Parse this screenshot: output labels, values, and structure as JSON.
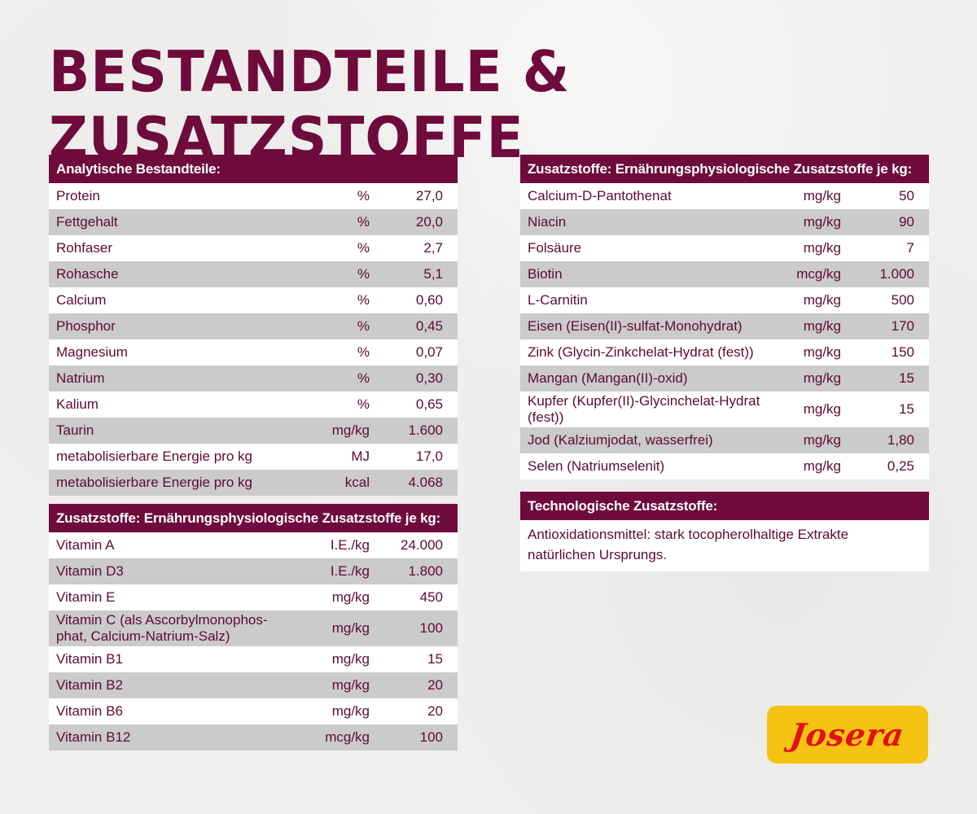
{
  "title": "BESTANDTEILE & ZUSATZSTOFFE",
  "analytical": {
    "header": "Analytische Bestandteile:",
    "rows": [
      {
        "name": "Protein",
        "unit": "%",
        "value": "27,0"
      },
      {
        "name": "Fettgehalt",
        "unit": "%",
        "value": "20,0"
      },
      {
        "name": "Rohfaser",
        "unit": "%",
        "value": "2,7"
      },
      {
        "name": "Rohasche",
        "unit": "%",
        "value": "5,1"
      },
      {
        "name": "Calcium",
        "unit": "%",
        "value": "0,60"
      },
      {
        "name": "Phosphor",
        "unit": "%",
        "value": "0,45"
      },
      {
        "name": "Magnesium",
        "unit": "%",
        "value": "0,07"
      },
      {
        "name": "Natrium",
        "unit": "%",
        "value": "0,30"
      },
      {
        "name": "Kalium",
        "unit": "%",
        "value": "0,65"
      },
      {
        "name": "Taurin",
        "unit": "mg/kg",
        "value": "1.600"
      },
      {
        "name": "metabolisierbare Energie pro kg",
        "unit": "MJ",
        "value": "17,0"
      },
      {
        "name": "metabolisierbare Energie pro kg",
        "unit": "kcal",
        "value": "4.068"
      }
    ]
  },
  "vitamins": {
    "header": "Zusatzstoffe: Ernährungsphysiologische Zusatzstoffe je kg:",
    "rows": [
      {
        "name": "Vitamin A",
        "unit": "I.E./kg",
        "value": "24.000"
      },
      {
        "name": "Vitamin D3",
        "unit": "I.E./kg",
        "value": "1.800"
      },
      {
        "name": "Vitamin E",
        "unit": "mg/kg",
        "value": "450"
      },
      {
        "name_line1": "Vitamin C (als Ascorbylmonophos-",
        "name_line2": "phat, Calcium-Natrium-Salz)",
        "unit": "mg/kg",
        "value": "100"
      },
      {
        "name": "Vitamin B1",
        "unit": "mg/kg",
        "value": "15"
      },
      {
        "name": "Vitamin B2",
        "unit": "mg/kg",
        "value": "20"
      },
      {
        "name": "Vitamin B6",
        "unit": "mg/kg",
        "value": "20"
      },
      {
        "name": "Vitamin B12",
        "unit": "mcg/kg",
        "value": "100"
      }
    ]
  },
  "minerals": {
    "header": "Zusatzstoffe: Ernährungsphysiologische Zusatzstoffe je kg:",
    "rows": [
      {
        "name": "Calcium-D-Pantothenat",
        "unit": "mg/kg",
        "value": "50"
      },
      {
        "name": "Niacin",
        "unit": "mg/kg",
        "value": "90"
      },
      {
        "name": "Folsäure",
        "unit": "mg/kg",
        "value": "7"
      },
      {
        "name": "Biotin",
        "unit": "mcg/kg",
        "value": "1.000"
      },
      {
        "name": "L-Carnitin",
        "unit": "mg/kg",
        "value": "500"
      },
      {
        "name": "Eisen (Eisen(II)-sulfat-Monohydrat)",
        "unit": "mg/kg",
        "value": "170"
      },
      {
        "name": "Zink (Glycin-Zinkchelat-Hydrat (fest))",
        "unit": "mg/kg",
        "value": "150"
      },
      {
        "name": "Mangan (Mangan(II)-oxid)",
        "unit": "mg/kg",
        "value": "15"
      },
      {
        "name_line1": "Kupfer (Kupfer(II)-Glycinchelat-Hydrat",
        "name_line2": "(fest))",
        "unit": "mg/kg",
        "value": "15"
      },
      {
        "name": "Jod (Kalziumjodat, wasserfrei)",
        "unit": "mg/kg",
        "value": "1,80"
      },
      {
        "name": "Selen (Natriumselenit)",
        "unit": "mg/kg",
        "value": "0,25"
      }
    ]
  },
  "technological": {
    "header": "Technologische Zusatzstoffe:",
    "line1": "Antioxidationsmittel: stark tocopherolhaltige Extrakte",
    "line2": "natürlichen Ursprungs."
  },
  "logo": {
    "text": "Josera"
  },
  "colors": {
    "primary": "#6e0b3c",
    "row_alt": "#cbcbcb",
    "logo_bg": "#f6c311",
    "logo_text": "#e2101a"
  }
}
